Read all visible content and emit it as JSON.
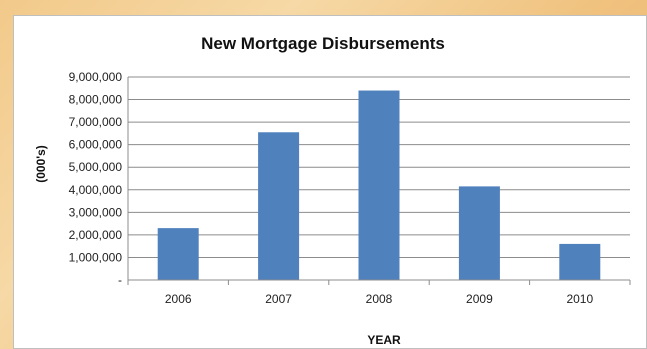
{
  "chart_data": {
    "type": "bar",
    "title": "New Mortgage Disbursements",
    "xlabel": "YEAR",
    "ylabel": "(000's)",
    "categories": [
      "2006",
      "2007",
      "2008",
      "2009",
      "2010"
    ],
    "values": [
      2300000,
      6550000,
      8400000,
      4150000,
      1600000
    ],
    "ylim": [
      0,
      9000000
    ],
    "yticks": [
      "-",
      "1,000,000",
      "2,000,000",
      "3,000,000",
      "4,000,000",
      "5,000,000",
      "6,000,000",
      "7,000,000",
      "8,000,000",
      "9,000,000"
    ],
    "grid": true,
    "bar_color": "#4f81bd"
  }
}
